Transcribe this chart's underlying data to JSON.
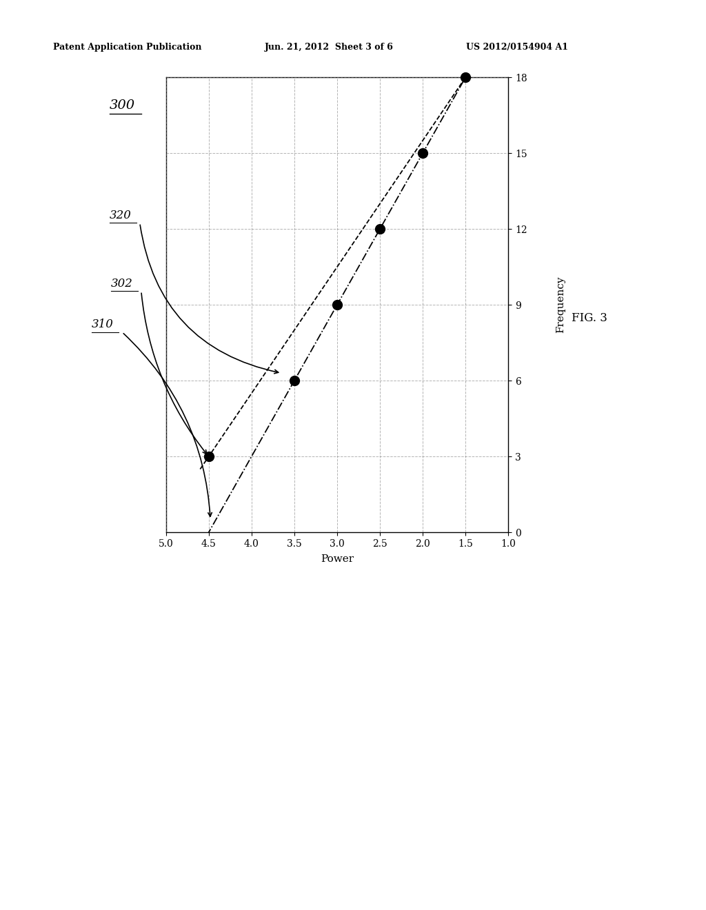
{
  "header_left": "Patent Application Publication",
  "header_center": "Jun. 21, 2012  Sheet 3 of 6",
  "header_right": "US 2012/0154904 A1",
  "fig_label": "FIG. 3",
  "label_300": "300",
  "label_302": "302",
  "label_310": "310",
  "label_320": "320",
  "xlabel": "Power",
  "ylabel": "Frequency",
  "x_ticks": [
    5.0,
    4.5,
    4.0,
    3.5,
    3.0,
    2.5,
    2.0,
    1.5,
    1.0
  ],
  "y_ticks": [
    0,
    3,
    6,
    9,
    12,
    15,
    18
  ],
  "xlim_left": 5.0,
  "xlim_right": 1.0,
  "ylim_bottom": 0,
  "ylim_top": 18,
  "data_points_x": [
    4.5,
    3.5,
    3.0,
    2.5,
    2.0,
    1.5
  ],
  "data_points_y": [
    3,
    6,
    9,
    12,
    15,
    18
  ],
  "bg_color": "#ffffff",
  "point_color": "#000000",
  "grid_color": "#777777"
}
